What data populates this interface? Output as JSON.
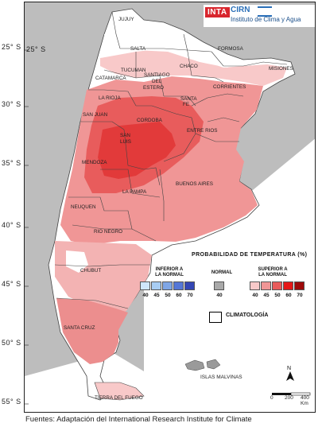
{
  "latitudes": [
    "25° S",
    "30° S",
    "35° S",
    "40° S",
    "45° S",
    "50° S",
    "55° S"
  ],
  "logo": {
    "inta": "INTA",
    "cirn": "CIRN",
    "institute": "Instituto de Clima y Agua"
  },
  "provinces": {
    "jujuy": "JUJUY",
    "salta": "SALTA",
    "formosa": "FORMOSA",
    "chaco": "CHACO",
    "misiones": "MISIONES",
    "catamarca": "CATAMARCA",
    "tucuman": "TUCUMAN",
    "santiago1": "SANTIAGO",
    "santiago2": "DEL",
    "santiago3": "ESTERO",
    "corrientes": "CORRIENTES",
    "la_rioja": "LA RIOJA",
    "santa_fe1": "SANTA",
    "santa_fe2": "FE",
    "san_juan": "SAN JUAN",
    "cordoba": "CORDOBA",
    "entre_rios": "ENTRE RIOS",
    "san_luis1": "SAN",
    "san_luis2": "LUIS",
    "mendoza": "MENDOZA",
    "buenos_aires": "BUENOS AIRES",
    "la_pampa": "LA PAMPA",
    "neuquen": "NEUQUEN",
    "rio_negro": "RIO NEGRO",
    "chubut": "CHUBUT",
    "santa_cruz": "SANTA CRUZ",
    "tierra_del_fuego": "TIERRA DEL FUEGO"
  },
  "legend": {
    "title": "PROBABILIDAD DE TEMPERATURA (%)",
    "below_label": [
      "INFERIOR A",
      "LA NORMAL"
    ],
    "normal_label": "NORMAL",
    "above_label": [
      "SUPERIOR A",
      "LA NORMAL"
    ],
    "below": {
      "values": [
        "40",
        "45",
        "50",
        "60",
        "70"
      ],
      "colors": [
        "#cfe6fb",
        "#a8cdf3",
        "#7fa6e6",
        "#5577d6",
        "#3447b5"
      ]
    },
    "normal": {
      "values": [
        "40"
      ],
      "colors": [
        "#a9a9a9"
      ]
    },
    "above": {
      "values": [
        "40",
        "45",
        "50",
        "60",
        "70"
      ],
      "colors": [
        "#f8c9c9",
        "#f09696",
        "#e85c5c",
        "#e51717",
        "#9e0a0a"
      ]
    },
    "climatology": "CLIMATOLOGÍA"
  },
  "islands_label": "ISLAS MALVINAS",
  "north": "N",
  "scale": {
    "labels": [
      "0",
      "200",
      "400 Km"
    ]
  },
  "source": "Fuentes: Adaptación del International Research Institute for Climate"
}
